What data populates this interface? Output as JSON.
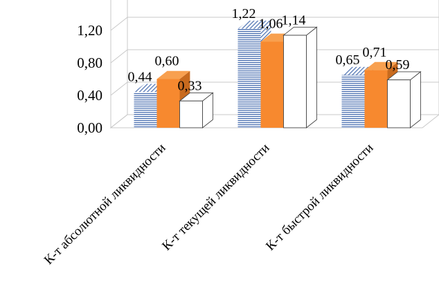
{
  "chart_data": {
    "type": "bar",
    "categories": [
      "К-т абсолютной ликвидности",
      "К-т текущей ликвидности",
      "К-т быстрой ликвидности"
    ],
    "series": [
      {
        "values": [
          0.44,
          1.22,
          0.65
        ],
        "labels": [
          "0,44",
          "1,22",
          "0,65"
        ],
        "color": "#4a6fb0",
        "fill": "hatched-blue"
      },
      {
        "values": [
          0.6,
          1.06,
          0.71
        ],
        "labels": [
          "0,60",
          "1,06",
          "0,71"
        ],
        "color": "#f7892f",
        "fill": "solid-orange"
      },
      {
        "values": [
          0.33,
          1.14,
          0.59
        ],
        "labels": [
          "0,33",
          "1,14",
          "0,59"
        ],
        "color": "#ffffff",
        "fill": "white-outline"
      }
    ],
    "y_ticks": [
      {
        "value": 0.0,
        "label": "0,00"
      },
      {
        "value": 0.4,
        "label": "0,40"
      },
      {
        "value": 0.8,
        "label": "0,80"
      },
      {
        "value": 1.2,
        "label": "1,20"
      }
    ],
    "ylim": [
      0,
      1.6
    ],
    "grid": true,
    "legend": "none",
    "three_d": true
  }
}
